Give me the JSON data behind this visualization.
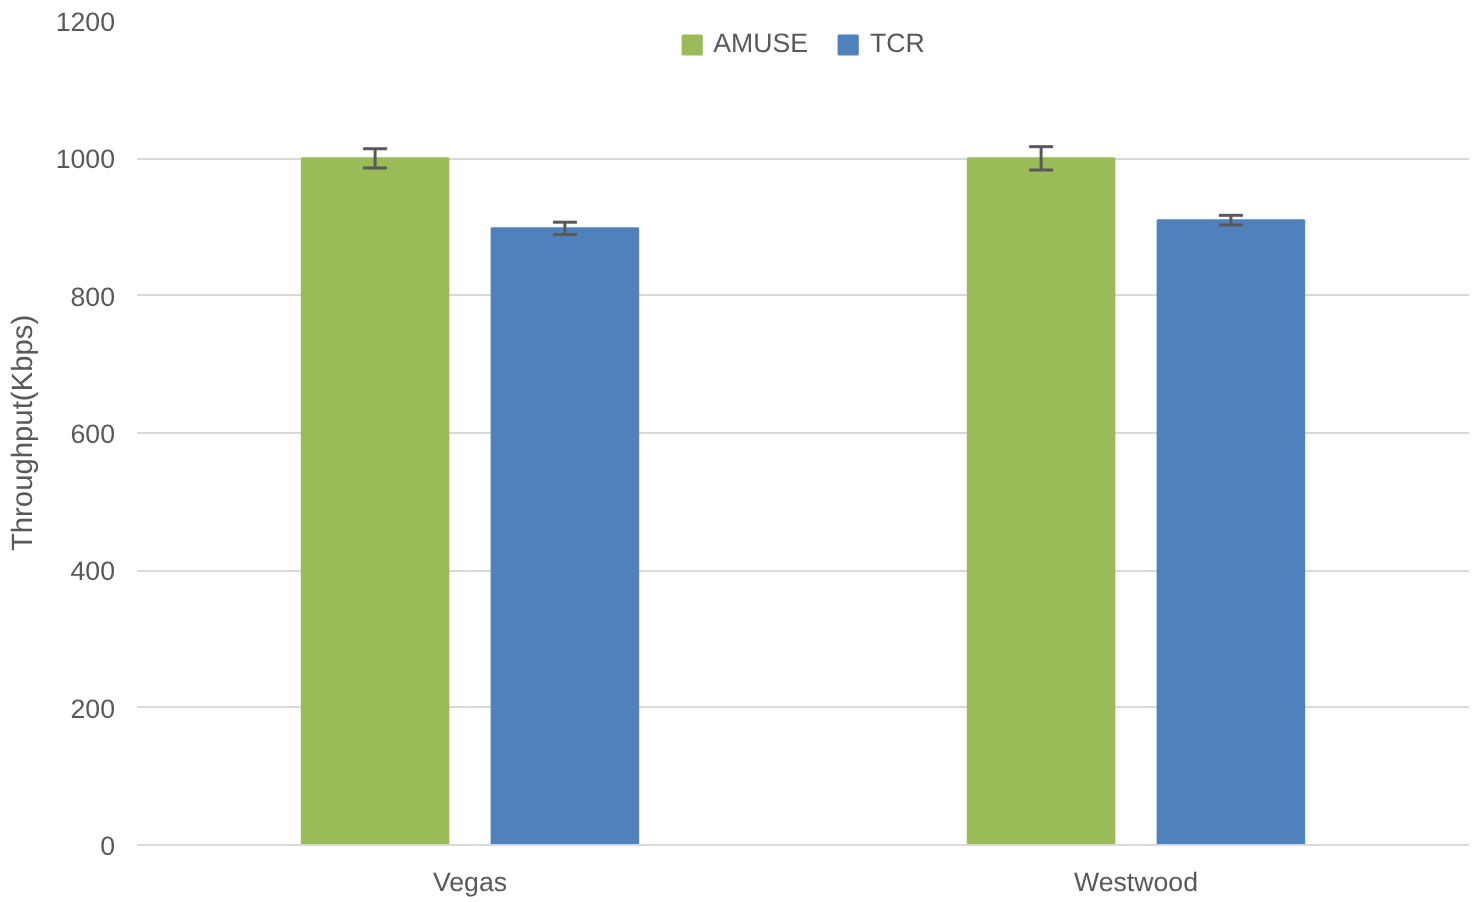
{
  "chart_data": {
    "type": "bar",
    "ylabel": "Throughput(Kbps)",
    "categories": [
      "Vegas",
      "Westwood"
    ],
    "series": [
      {
        "name": "AMUSE",
        "color": "#9bbb59",
        "values": [
          1000,
          1000
        ],
        "errors": [
          14,
          17
        ]
      },
      {
        "name": "TCR",
        "color": "#4f81bd",
        "values": [
          898,
          910
        ],
        "errors": [
          9,
          7
        ]
      }
    ],
    "ylim": [
      0,
      1200
    ],
    "yticks": [
      0,
      200,
      400,
      600,
      800,
      1000,
      1200
    ],
    "grid": "y",
    "legend": "top"
  }
}
